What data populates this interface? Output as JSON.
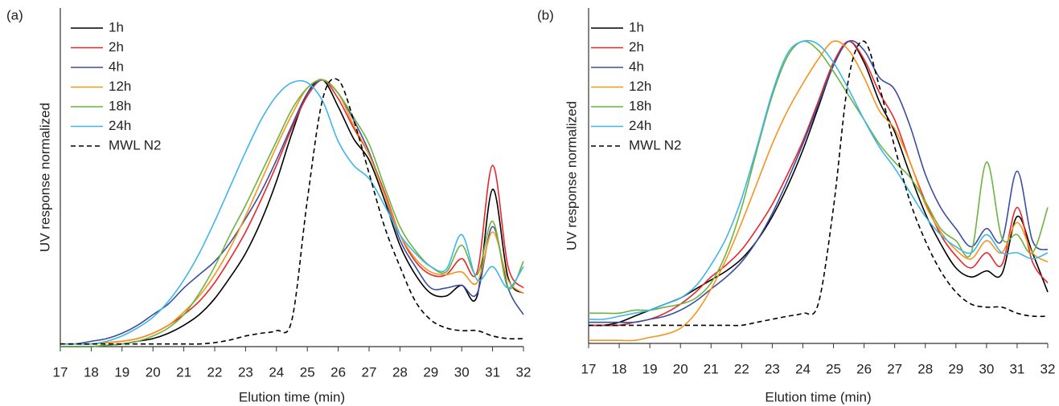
{
  "chart_data": [
    {
      "type": "line",
      "panel_label": "(a)",
      "x_label": "Elution time (min)",
      "y_label": "UV response normalized",
      "x": [
        17,
        17.5,
        18,
        18.5,
        19,
        19.5,
        20,
        20.5,
        21,
        21.5,
        22,
        22.5,
        23,
        23.5,
        24,
        24.5,
        25,
        25.5,
        26,
        26.5,
        27,
        27.5,
        28,
        28.5,
        29,
        29.5,
        30,
        30.5,
        31,
        31.5,
        32
      ],
      "xlim": [
        17,
        32
      ],
      "xticks": [
        17,
        18,
        19,
        20,
        21,
        22,
        23,
        24,
        25,
        26,
        27,
        28,
        29,
        30,
        31,
        32
      ],
      "ylim": [
        0,
        1.27
      ],
      "series": [
        {
          "name": "1h",
          "color": "#000000",
          "dashed": false,
          "values": [
            0,
            0,
            0,
            0.005,
            0.01,
            0.02,
            0.03,
            0.05,
            0.08,
            0.12,
            0.18,
            0.26,
            0.35,
            0.47,
            0.62,
            0.8,
            0.95,
            1.0,
            0.9,
            0.78,
            0.7,
            0.55,
            0.38,
            0.27,
            0.2,
            0.19,
            0.23,
            0.19,
            0.59,
            0.26,
            0.2
          ]
        },
        {
          "name": "2h",
          "color": "#e8262b",
          "dashed": false,
          "values": [
            0.01,
            0.01,
            0.01,
            0.015,
            0.02,
            0.03,
            0.05,
            0.08,
            0.12,
            0.17,
            0.24,
            0.33,
            0.43,
            0.55,
            0.68,
            0.82,
            0.94,
            1.0,
            0.93,
            0.82,
            0.72,
            0.58,
            0.42,
            0.32,
            0.27,
            0.27,
            0.33,
            0.28,
            0.68,
            0.3,
            0.22
          ]
        },
        {
          "name": "4h",
          "color": "#3a4ea0",
          "dashed": false,
          "values": [
            0.01,
            0.01,
            0.02,
            0.03,
            0.05,
            0.08,
            0.12,
            0.16,
            0.22,
            0.27,
            0.32,
            0.39,
            0.48,
            0.58,
            0.7,
            0.83,
            0.95,
            1.0,
            0.95,
            0.85,
            0.73,
            0.57,
            0.4,
            0.3,
            0.22,
            0.22,
            0.23,
            0.2,
            0.45,
            0.22,
            0.12
          ]
        },
        {
          "name": "12h",
          "color": "#f7941d",
          "dashed": false,
          "values": [
            0.01,
            0.01,
            0.01,
            0.015,
            0.02,
            0.03,
            0.05,
            0.08,
            0.13,
            0.19,
            0.27,
            0.37,
            0.49,
            0.62,
            0.75,
            0.87,
            0.97,
            1.0,
            0.95,
            0.83,
            0.72,
            0.57,
            0.42,
            0.33,
            0.28,
            0.27,
            0.28,
            0.24,
            0.43,
            0.25,
            0.2
          ]
        },
        {
          "name": "18h",
          "color": "#6cb33f",
          "dashed": false,
          "values": [
            0,
            0,
            0,
            0.005,
            0.01,
            0.02,
            0.04,
            0.07,
            0.12,
            0.2,
            0.3,
            0.42,
            0.53,
            0.65,
            0.77,
            0.89,
            0.97,
            1.0,
            0.95,
            0.86,
            0.76,
            0.6,
            0.45,
            0.36,
            0.3,
            0.28,
            0.38,
            0.27,
            0.47,
            0.22,
            0.32
          ]
        },
        {
          "name": "24h",
          "color": "#3fb6e8",
          "dashed": false,
          "values": [
            0.01,
            0.01,
            0.01,
            0.02,
            0.04,
            0.07,
            0.11,
            0.17,
            0.25,
            0.35,
            0.47,
            0.6,
            0.73,
            0.85,
            0.94,
            0.99,
            0.99,
            0.92,
            0.77,
            0.68,
            0.63,
            0.53,
            0.42,
            0.35,
            0.3,
            0.29,
            0.42,
            0.25,
            0.3,
            0.22,
            0.3
          ]
        },
        {
          "name": "MWL N2",
          "color": "#000000",
          "dashed": true,
          "values": [
            0.01,
            0.01,
            0.01,
            0.01,
            0.01,
            0.01,
            0.01,
            0.01,
            0.01,
            0.01,
            0.015,
            0.025,
            0.04,
            0.05,
            0.06,
            0.1,
            0.55,
            0.93,
            1.0,
            0.85,
            0.65,
            0.45,
            0.3,
            0.17,
            0.1,
            0.07,
            0.06,
            0.06,
            0.04,
            0.03,
            0.03
          ]
        }
      ]
    },
    {
      "type": "line",
      "panel_label": "(b)",
      "x_label": "Elution time (min)",
      "y_label": "UV response normalized",
      "x": [
        17,
        17.5,
        18,
        18.5,
        19,
        19.5,
        20,
        20.5,
        21,
        21.5,
        22,
        22.5,
        23,
        23.5,
        24,
        24.5,
        25,
        25.5,
        26,
        26.5,
        27,
        27.5,
        28,
        28.5,
        29,
        29.5,
        30,
        30.5,
        31,
        31.5,
        32
      ],
      "xlim": [
        17,
        32
      ],
      "xticks": [
        17,
        18,
        19,
        20,
        21,
        22,
        23,
        24,
        25,
        26,
        27,
        28,
        29,
        30,
        31,
        32
      ],
      "ylim": [
        0,
        1.11
      ],
      "series": [
        {
          "name": "1h",
          "color": "#000000",
          "dashed": false,
          "values": [
            0.06,
            0.06,
            0.07,
            0.09,
            0.11,
            0.13,
            0.15,
            0.18,
            0.21,
            0.24,
            0.28,
            0.34,
            0.42,
            0.52,
            0.64,
            0.78,
            0.92,
            1.0,
            0.93,
            0.8,
            0.7,
            0.56,
            0.43,
            0.33,
            0.25,
            0.22,
            0.24,
            0.23,
            0.42,
            0.3,
            0.17
          ]
        },
        {
          "name": "2h",
          "color": "#e8262b",
          "dashed": false,
          "values": [
            0.06,
            0.06,
            0.06,
            0.07,
            0.08,
            0.1,
            0.13,
            0.17,
            0.22,
            0.26,
            0.31,
            0.38,
            0.46,
            0.56,
            0.67,
            0.8,
            0.93,
            1.0,
            0.94,
            0.83,
            0.74,
            0.6,
            0.47,
            0.36,
            0.29,
            0.25,
            0.3,
            0.26,
            0.45,
            0.27,
            0.2
          ]
        },
        {
          "name": "4h",
          "color": "#3a4ea0",
          "dashed": false,
          "values": [
            0.07,
            0.07,
            0.07,
            0.07,
            0.08,
            0.09,
            0.11,
            0.14,
            0.18,
            0.22,
            0.27,
            0.34,
            0.43,
            0.54,
            0.66,
            0.79,
            0.92,
            1.0,
            0.97,
            0.88,
            0.84,
            0.72,
            0.56,
            0.45,
            0.38,
            0.32,
            0.38,
            0.34,
            0.57,
            0.34,
            0.31
          ]
        },
        {
          "name": "12h",
          "color": "#f7941d",
          "dashed": false,
          "values": [
            0.01,
            0.01,
            0.01,
            0.01,
            0.02,
            0.03,
            0.05,
            0.1,
            0.18,
            0.28,
            0.4,
            0.53,
            0.66,
            0.77,
            0.86,
            0.94,
            1.0,
            0.97,
            0.88,
            0.77,
            0.71,
            0.6,
            0.46,
            0.37,
            0.31,
            0.28,
            0.34,
            0.3,
            0.4,
            0.3,
            0.27
          ]
        },
        {
          "name": "18h",
          "color": "#6cb33f",
          "dashed": false,
          "values": [
            0.1,
            0.1,
            0.1,
            0.11,
            0.11,
            0.12,
            0.13,
            0.15,
            0.2,
            0.3,
            0.45,
            0.64,
            0.82,
            0.95,
            1.0,
            0.97,
            0.9,
            0.82,
            0.74,
            0.66,
            0.6,
            0.55,
            0.47,
            0.38,
            0.34,
            0.3,
            0.6,
            0.35,
            0.36,
            0.3,
            0.45
          ]
        },
        {
          "name": "24h",
          "color": "#3fb6e8",
          "dashed": false,
          "values": [
            0.08,
            0.08,
            0.09,
            0.1,
            0.11,
            0.13,
            0.15,
            0.19,
            0.26,
            0.35,
            0.48,
            0.65,
            0.83,
            0.96,
            1.0,
            0.99,
            0.93,
            0.84,
            0.74,
            0.65,
            0.58,
            0.5,
            0.42,
            0.36,
            0.32,
            0.3,
            0.36,
            0.3,
            0.3,
            0.28,
            0.3
          ]
        },
        {
          "name": "MWL N2",
          "color": "#000000",
          "dashed": true,
          "values": [
            0.06,
            0.06,
            0.06,
            0.06,
            0.06,
            0.06,
            0.06,
            0.06,
            0.06,
            0.06,
            0.06,
            0.07,
            0.08,
            0.09,
            0.1,
            0.13,
            0.45,
            0.88,
            1.0,
            0.85,
            0.65,
            0.47,
            0.34,
            0.24,
            0.17,
            0.13,
            0.12,
            0.12,
            0.1,
            0.09,
            0.09
          ]
        }
      ]
    }
  ]
}
